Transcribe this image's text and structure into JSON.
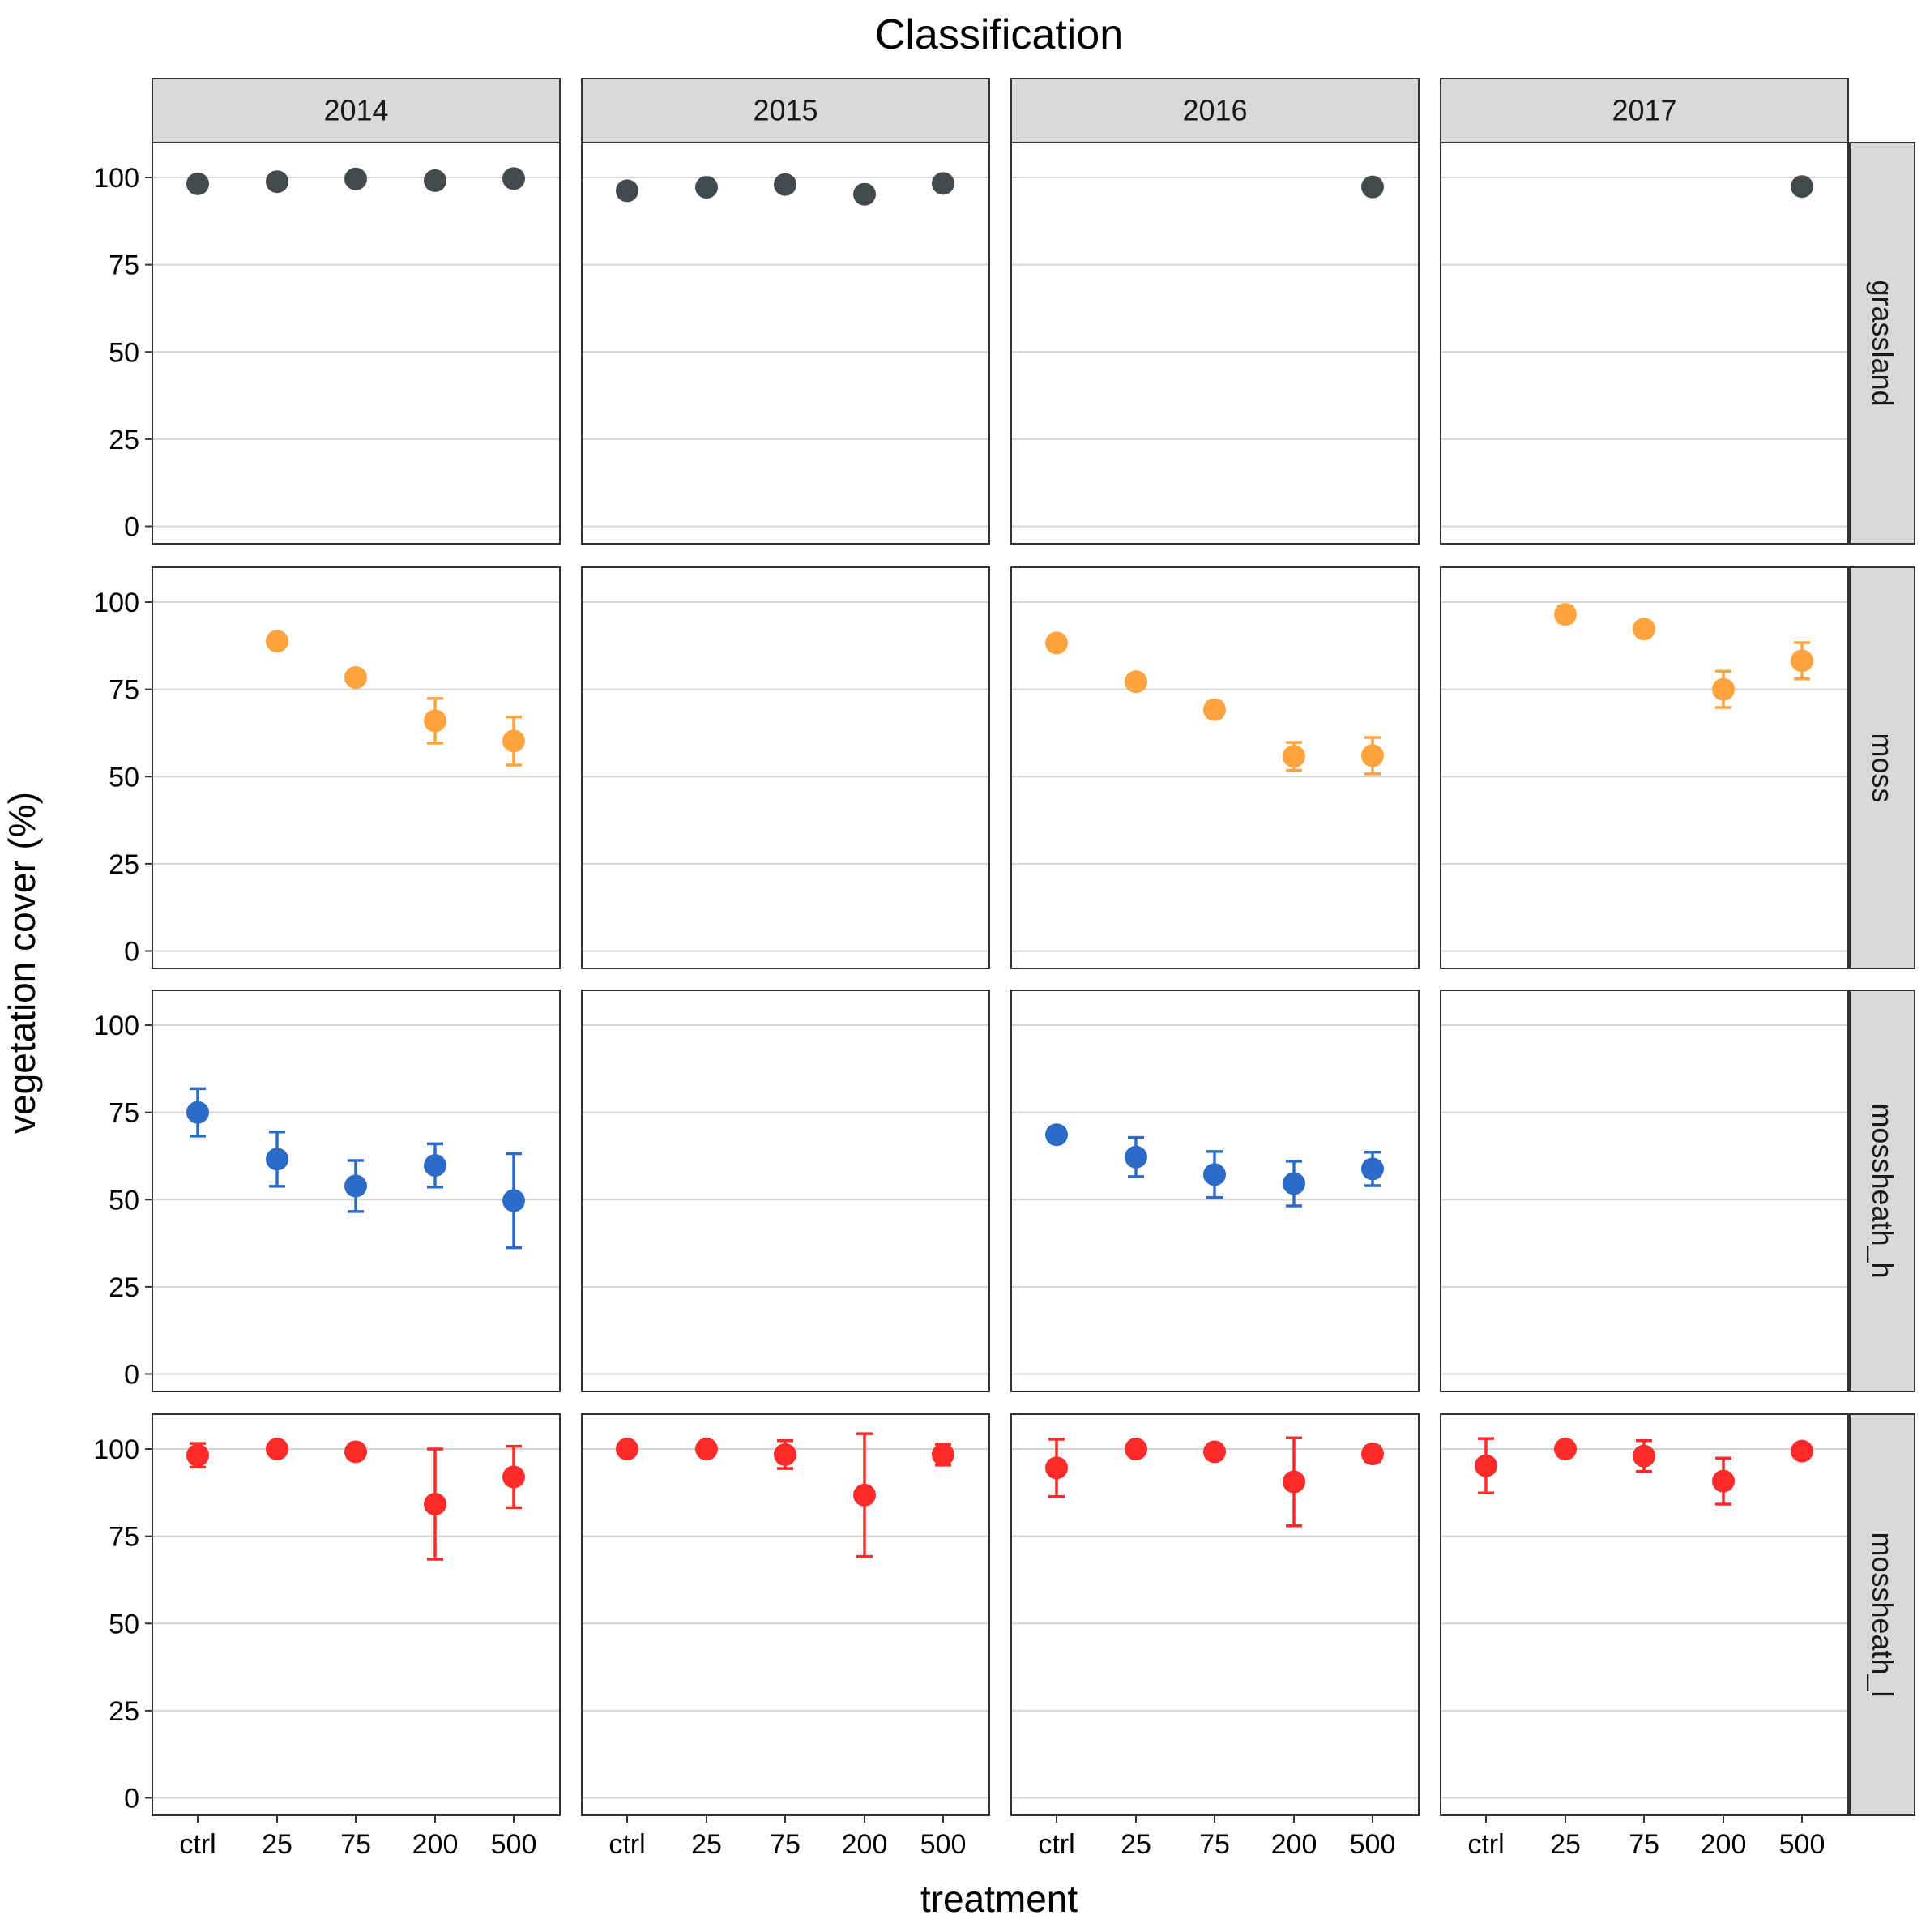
{
  "chart_data": {
    "type": "scatter",
    "subtype": "point-with-errorbars, faceted grid",
    "title": "Classification",
    "xlabel": "treatment",
    "ylabel": "vegetation cover (%)",
    "categories": [
      "ctrl",
      "25",
      "75",
      "200",
      "500"
    ],
    "ylim": [
      -5,
      110
    ],
    "yticks": [
      0,
      25,
      50,
      75,
      100
    ],
    "grid": true,
    "legend": "none",
    "facet_columns": [
      "2014",
      "2015",
      "2016",
      "2017"
    ],
    "facet_rows": [
      {
        "label": "grassland",
        "color": "#434A4D"
      },
      {
        "label": "moss",
        "color": "#FFA33F"
      },
      {
        "label": "mossheath_h",
        "color": "#2C6CC8"
      },
      {
        "label": "mossheath_l",
        "color": "#FF2A2A"
      }
    ],
    "series": [
      {
        "row": "grassland",
        "year": "2014",
        "points": [
          {
            "x": "ctrl",
            "y": 98.2,
            "lo": 97.6,
            "hi": 98.8
          },
          {
            "x": "25",
            "y": 98.8,
            "lo": 98.3,
            "hi": 99.3
          },
          {
            "x": "75",
            "y": 99.6,
            "lo": 99.3,
            "hi": 99.9
          },
          {
            "x": "200",
            "y": 99.1,
            "lo": 98.6,
            "hi": 99.6
          },
          {
            "x": "500",
            "y": 99.7,
            "lo": 99.4,
            "hi": 100.0
          }
        ]
      },
      {
        "row": "grassland",
        "year": "2015",
        "points": [
          {
            "x": "ctrl",
            "y": 96.2,
            "lo": 94.8,
            "hi": 97.6
          },
          {
            "x": "25",
            "y": 97.2,
            "lo": 96.3,
            "hi": 98.1
          },
          {
            "x": "75",
            "y": 98.0,
            "lo": 97.4,
            "hi": 98.6
          },
          {
            "x": "200",
            "y": 95.2,
            "lo": 94.2,
            "hi": 96.2
          },
          {
            "x": "500",
            "y": 98.3,
            "lo": 97.8,
            "hi": 98.8
          }
        ]
      },
      {
        "row": "grassland",
        "year": "2016",
        "points": [
          {
            "x": "500",
            "y": 97.3,
            "lo": 96.7,
            "hi": 97.9
          }
        ]
      },
      {
        "row": "grassland",
        "year": "2017",
        "points": [
          {
            "x": "500",
            "y": 97.4,
            "lo": 96.8,
            "hi": 98.0
          }
        ]
      },
      {
        "row": "moss",
        "year": "2014",
        "points": [
          {
            "x": "25",
            "y": 88.8,
            "lo": 88.0,
            "hi": 89.6
          },
          {
            "x": "75",
            "y": 78.4,
            "lo": 77.4,
            "hi": 79.4
          },
          {
            "x": "200",
            "y": 66.0,
            "lo": 59.6,
            "hi": 72.4
          },
          {
            "x": "500",
            "y": 60.2,
            "lo": 53.3,
            "hi": 67.1
          }
        ]
      },
      {
        "row": "moss",
        "year": "2015",
        "points": []
      },
      {
        "row": "moss",
        "year": "2016",
        "points": [
          {
            "x": "ctrl",
            "y": 88.3,
            "lo": 87.5,
            "hi": 89.1
          },
          {
            "x": "25",
            "y": 77.2,
            "lo": 76.2,
            "hi": 78.2
          },
          {
            "x": "75",
            "y": 69.2,
            "lo": 67.0,
            "hi": 71.4
          },
          {
            "x": "200",
            "y": 55.8,
            "lo": 51.8,
            "hi": 59.8
          },
          {
            "x": "500",
            "y": 56.0,
            "lo": 50.8,
            "hi": 61.2
          }
        ]
      },
      {
        "row": "moss",
        "year": "2017",
        "points": [
          {
            "x": "25",
            "y": 96.5,
            "lo": 94.2,
            "hi": 98.8
          },
          {
            "x": "75",
            "y": 92.3,
            "lo": 90.2,
            "hi": 94.4
          },
          {
            "x": "200",
            "y": 75.0,
            "lo": 69.8,
            "hi": 80.2
          },
          {
            "x": "500",
            "y": 83.2,
            "lo": 78.0,
            "hi": 88.4
          }
        ]
      },
      {
        "row": "mossheath_h",
        "year": "2014",
        "points": [
          {
            "x": "ctrl",
            "y": 75.0,
            "lo": 68.2,
            "hi": 81.8
          },
          {
            "x": "25",
            "y": 61.6,
            "lo": 53.8,
            "hi": 69.4
          },
          {
            "x": "75",
            "y": 53.9,
            "lo": 46.6,
            "hi": 61.2
          },
          {
            "x": "200",
            "y": 59.8,
            "lo": 53.6,
            "hi": 66.0
          },
          {
            "x": "500",
            "y": 49.7,
            "lo": 36.2,
            "hi": 63.2
          }
        ]
      },
      {
        "row": "mossheath_h",
        "year": "2015",
        "points": []
      },
      {
        "row": "mossheath_h",
        "year": "2016",
        "points": [
          {
            "x": "ctrl",
            "y": 68.6,
            "lo": 67.8,
            "hi": 69.4
          },
          {
            "x": "25",
            "y": 62.2,
            "lo": 56.6,
            "hi": 67.8
          },
          {
            "x": "75",
            "y": 57.2,
            "lo": 50.6,
            "hi": 63.8
          },
          {
            "x": "200",
            "y": 54.6,
            "lo": 48.2,
            "hi": 61.0
          },
          {
            "x": "500",
            "y": 58.8,
            "lo": 54.0,
            "hi": 63.6
          }
        ]
      },
      {
        "row": "mossheath_h",
        "year": "2017",
        "points": []
      },
      {
        "row": "mossheath_l",
        "year": "2014",
        "points": [
          {
            "x": "ctrl",
            "y": 98.2,
            "lo": 94.8,
            "hi": 101.6
          },
          {
            "x": "25",
            "y": 100.0,
            "lo": 99.5,
            "hi": 100.5
          },
          {
            "x": "75",
            "y": 99.2,
            "lo": 98.5,
            "hi": 99.9
          },
          {
            "x": "200",
            "y": 84.2,
            "lo": 68.4,
            "hi": 100.0
          },
          {
            "x": "500",
            "y": 92.0,
            "lo": 83.2,
            "hi": 100.8
          }
        ]
      },
      {
        "row": "mossheath_l",
        "year": "2015",
        "points": [
          {
            "x": "ctrl",
            "y": 100.0,
            "lo": 99.5,
            "hi": 100.5
          },
          {
            "x": "25",
            "y": 100.0,
            "lo": 99.5,
            "hi": 100.5
          },
          {
            "x": "75",
            "y": 98.4,
            "lo": 94.4,
            "hi": 102.4
          },
          {
            "x": "200",
            "y": 86.8,
            "lo": 69.2,
            "hi": 104.4
          },
          {
            "x": "500",
            "y": 98.4,
            "lo": 95.4,
            "hi": 101.4
          }
        ]
      },
      {
        "row": "mossheath_l",
        "year": "2016",
        "points": [
          {
            "x": "ctrl",
            "y": 94.6,
            "lo": 86.4,
            "hi": 102.8
          },
          {
            "x": "25",
            "y": 100.0,
            "lo": 99.5,
            "hi": 100.5
          },
          {
            "x": "75",
            "y": 99.2,
            "lo": 98.5,
            "hi": 99.9
          },
          {
            "x": "200",
            "y": 90.6,
            "lo": 78.0,
            "hi": 103.2
          },
          {
            "x": "500",
            "y": 98.6,
            "lo": 96.4,
            "hi": 100.8
          }
        ]
      },
      {
        "row": "mossheath_l",
        "year": "2017",
        "points": [
          {
            "x": "ctrl",
            "y": 95.2,
            "lo": 87.4,
            "hi": 103.0
          },
          {
            "x": "25",
            "y": 100.0,
            "lo": 99.5,
            "hi": 100.5
          },
          {
            "x": "75",
            "y": 98.0,
            "lo": 93.6,
            "hi": 102.4
          },
          {
            "x": "200",
            "y": 90.8,
            "lo": 84.2,
            "hi": 97.4
          },
          {
            "x": "500",
            "y": 99.4,
            "lo": 98.8,
            "hi": 100.0
          }
        ]
      }
    ]
  }
}
